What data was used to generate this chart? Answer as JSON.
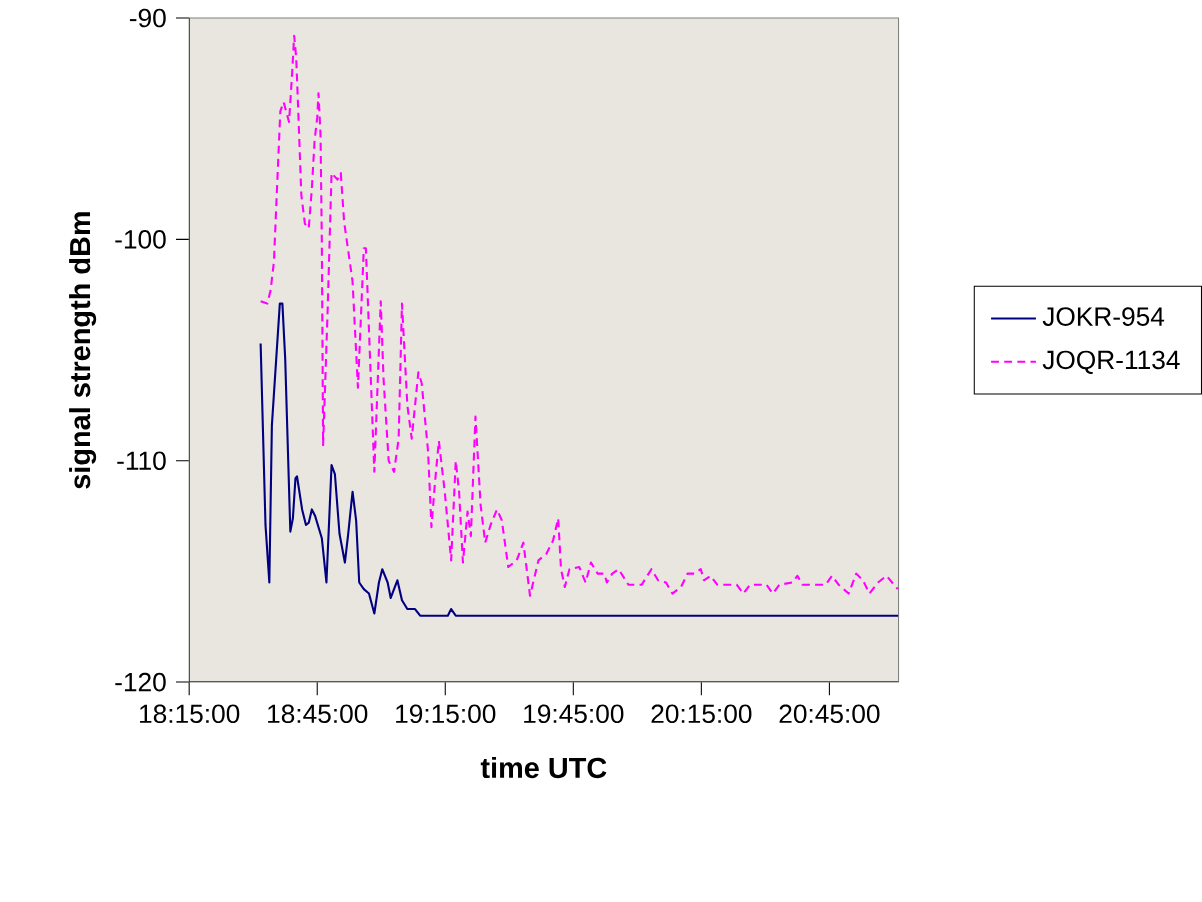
{
  "chart_data": {
    "type": "line",
    "xlabel": "time UTC",
    "ylabel": "signal strength dBm",
    "xlim": [
      18.25,
      21.02
    ],
    "ylim": [
      -120,
      -90
    ],
    "xticks": [
      {
        "value": 18.25,
        "label": "18:15:00"
      },
      {
        "value": 18.75,
        "label": "18:45:00"
      },
      {
        "value": 19.25,
        "label": "19:15:00"
      },
      {
        "value": 19.75,
        "label": "19:45:00"
      },
      {
        "value": 20.25,
        "label": "20:15:00"
      },
      {
        "value": 20.75,
        "label": "20:45:00"
      }
    ],
    "yticks": [
      -120,
      -110,
      -100,
      -90
    ],
    "legend": "right",
    "marker": "none",
    "series": [
      {
        "name": "JOKR-954",
        "color": "#000080",
        "line_style": "solid",
        "x": [
          18.529,
          18.548,
          18.563,
          18.573,
          18.604,
          18.614,
          18.625,
          18.645,
          18.655,
          18.665,
          18.671,
          18.691,
          18.706,
          18.717,
          18.729,
          18.742,
          18.768,
          18.786,
          18.806,
          18.819,
          18.837,
          18.858,
          18.871,
          18.888,
          18.902,
          18.914,
          18.932,
          18.952,
          18.973,
          18.991,
          19.004,
          19.025,
          19.037,
          19.063,
          19.081,
          19.102,
          19.132,
          19.152,
          19.26,
          19.273,
          19.291,
          21.019
        ],
        "values": [
          -104.7,
          -112.9,
          -115.5,
          -108.4,
          -102.9,
          -102.9,
          -105.4,
          -113.2,
          -112.6,
          -110.8,
          -110.7,
          -112.2,
          -112.9,
          -112.8,
          -112.2,
          -112.5,
          -113.5,
          -115.5,
          -110.2,
          -110.6,
          -113.3,
          -114.6,
          -113.3,
          -111.4,
          -112.7,
          -115.5,
          -115.8,
          -116,
          -116.9,
          -115.5,
          -114.9,
          -115.5,
          -116.2,
          -115.4,
          -116.3,
          -116.7,
          -116.7,
          -117,
          -117,
          -116.7,
          -117,
          -117
        ]
      },
      {
        "name": "JOQR-1134",
        "color": "#ff00ff",
        "line_style": "dashed",
        "x": [
          18.529,
          18.555,
          18.568,
          18.581,
          18.594,
          18.606,
          18.619,
          18.64,
          18.652,
          18.66,
          18.668,
          18.675,
          18.688,
          18.702,
          18.717,
          18.729,
          18.74,
          18.75,
          18.755,
          18.763,
          18.768,
          18.773,
          18.791,
          18.806,
          18.829,
          18.842,
          18.855,
          18.888,
          18.909,
          18.932,
          18.94,
          18.973,
          18.998,
          19.009,
          19.029,
          19.05,
          19.068,
          19.081,
          19.102,
          19.119,
          19.145,
          19.158,
          19.183,
          19.196,
          19.209,
          19.225,
          19.248,
          19.273,
          19.291,
          19.304,
          19.319,
          19.337,
          19.35,
          19.368,
          19.388,
          19.406,
          19.427,
          19.452,
          19.471,
          19.496,
          19.529,
          19.555,
          19.581,
          19.614,
          19.645,
          19.671,
          19.691,
          19.702,
          19.717,
          19.735,
          19.773,
          19.798,
          19.819,
          19.845,
          19.871,
          19.881,
          19.902,
          19.927,
          19.965,
          20.017,
          20.055,
          20.081,
          20.112,
          20.137,
          20.171,
          20.196,
          20.222,
          20.248,
          20.26,
          20.286,
          20.312,
          20.388,
          20.414,
          20.44,
          20.504,
          20.529,
          20.555,
          20.606,
          20.625,
          20.645,
          20.735,
          20.76,
          20.786,
          20.825,
          20.855,
          20.881,
          20.906,
          20.94,
          20.973,
          21.017
        ],
        "values": [
          -102.8,
          -102.9,
          -102.3,
          -101,
          -97.4,
          -94.2,
          -93.8,
          -94.7,
          -92.5,
          -90.8,
          -91.8,
          -93.9,
          -98,
          -99.3,
          -99.5,
          -97.7,
          -95.5,
          -94.5,
          -93.4,
          -95.3,
          -100.1,
          -109.3,
          -103.1,
          -97,
          -97.3,
          -97,
          -99.2,
          -101.9,
          -106.7,
          -100.4,
          -100.4,
          -110.5,
          -102.8,
          -106.3,
          -110,
          -110.5,
          -109,
          -102.9,
          -107.5,
          -109,
          -106,
          -106.5,
          -109.6,
          -113,
          -111.1,
          -109.1,
          -111.4,
          -114.5,
          -110,
          -111.4,
          -114.6,
          -112.3,
          -113.4,
          -108,
          -112,
          -113.7,
          -112.9,
          -112.2,
          -112.7,
          -114.8,
          -114.5,
          -113.7,
          -116.1,
          -114.5,
          -114.2,
          -113.6,
          -112.6,
          -114.9,
          -115.7,
          -114.9,
          -114.8,
          -115.5,
          -114.6,
          -115.1,
          -115.1,
          -115.5,
          -115.1,
          -114.9,
          -115.6,
          -115.6,
          -114.9,
          -115.4,
          -115.5,
          -116,
          -115.7,
          -115.1,
          -115.1,
          -114.9,
          -115.4,
          -115.2,
          -115.6,
          -115.6,
          -116,
          -115.6,
          -115.6,
          -116,
          -115.6,
          -115.5,
          -115.2,
          -115.6,
          -115.6,
          -115.2,
          -115.6,
          -116,
          -115.1,
          -115.4,
          -116,
          -115.5,
          -115.2,
          -115.8
        ]
      }
    ]
  }
}
